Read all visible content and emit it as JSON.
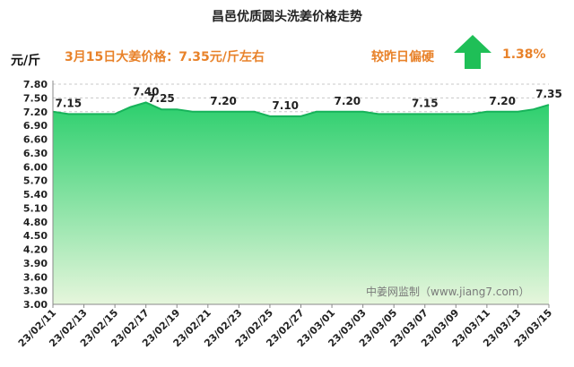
{
  "header": {
    "title": "昌邑优质圆头洗姜价格走势",
    "unit": "元/斤",
    "price_note": "3月15日大姜价格：7.35元/斤左右",
    "compare_label": "较昨日偏硬",
    "change_pct": "1.38%",
    "arrow": "up-arrow-icon",
    "watermark": "中姜网监制（www.jiang7.com）"
  },
  "colors": {
    "accent": "#e8822a",
    "area_top": "#2ccf6d",
    "area_bottom": "#e6f6dc",
    "line": "#17b35a",
    "arrow": "#1fbf57"
  },
  "chart_data": {
    "type": "area",
    "title": "昌邑优质圆头洗姜价格走势",
    "ylabel": "元/斤",
    "xlabel": "",
    "ylim": [
      3.0,
      7.8
    ],
    "yticks": [
      "7.80",
      "7.50",
      "7.20",
      "6.90",
      "6.60",
      "6.30",
      "6.00",
      "5.70",
      "5.40",
      "5.10",
      "4.80",
      "4.50",
      "4.20",
      "3.90",
      "3.60",
      "3.30",
      "3.00"
    ],
    "x": [
      "23/02/11",
      "23/02/12",
      "23/02/13",
      "23/02/14",
      "23/02/15",
      "23/02/16",
      "23/02/17",
      "23/02/18",
      "23/02/19",
      "23/02/20",
      "23/02/21",
      "23/02/22",
      "23/02/23",
      "23/02/24",
      "23/02/25",
      "23/02/26",
      "23/02/27",
      "23/02/28",
      "23/03/01",
      "23/03/02",
      "23/03/03",
      "23/03/04",
      "23/03/05",
      "23/03/06",
      "23/03/07",
      "23/03/08",
      "23/03/09",
      "23/03/10",
      "23/03/11",
      "23/03/12",
      "23/03/13",
      "23/03/14",
      "23/03/15"
    ],
    "xtick_labels": [
      "23/02/11",
      "23/02/13",
      "23/02/15",
      "23/02/17",
      "23/02/19",
      "23/02/21",
      "23/02/23",
      "23/02/25",
      "23/02/27",
      "23/03/01",
      "23/03/03",
      "23/03/05",
      "23/03/07",
      "23/03/09",
      "23/03/11",
      "23/03/13",
      "23/03/15"
    ],
    "values": [
      7.2,
      7.15,
      7.15,
      7.15,
      7.15,
      7.3,
      7.4,
      7.25,
      7.25,
      7.2,
      7.2,
      7.2,
      7.2,
      7.2,
      7.1,
      7.1,
      7.1,
      7.2,
      7.2,
      7.2,
      7.2,
      7.15,
      7.15,
      7.15,
      7.15,
      7.15,
      7.15,
      7.15,
      7.2,
      7.2,
      7.2,
      7.25,
      7.35
    ],
    "data_labels": [
      {
        "x": "23/02/12",
        "text": "7.15"
      },
      {
        "x": "23/02/17",
        "text": "7.40"
      },
      {
        "x": "23/02/18",
        "text": "7.25"
      },
      {
        "x": "23/02/22",
        "text": "7.20"
      },
      {
        "x": "23/02/26",
        "text": "7.10"
      },
      {
        "x": "23/03/02",
        "text": "7.20"
      },
      {
        "x": "23/03/07",
        "text": "7.15"
      },
      {
        "x": "23/03/12",
        "text": "7.20"
      },
      {
        "x": "23/03/15",
        "text": "7.35"
      }
    ],
    "grid": true
  }
}
